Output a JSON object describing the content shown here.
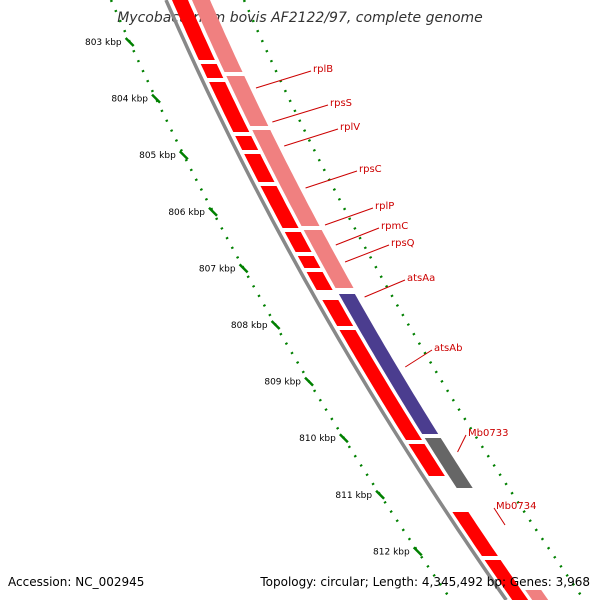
{
  "title": "Mycobacterium bovis AF2122/97, complete genome",
  "accession": "Accession: NC_002945",
  "topology": "Topology: circular; Length: 4,345,492 bp; Genes: 3,968",
  "colors": {
    "forward_cds": "#ff0000",
    "reverse_cds": "#f08080",
    "rrna_block": "#4b3d8f",
    "other_block": "#666666",
    "backbone": "#888888",
    "tick": "#008000",
    "label": "#cc0000"
  },
  "kbp_ticks": [
    {
      "label": "803 kbp",
      "kb": 803
    },
    {
      "label": "804 kbp",
      "kb": 804
    },
    {
      "label": "805 kbp",
      "kb": 805
    },
    {
      "label": "806 kbp",
      "kb": 806
    },
    {
      "label": "807 kbp",
      "kb": 807
    },
    {
      "label": "808 kbp",
      "kb": 808
    },
    {
      "label": "809 kbp",
      "kb": 809
    },
    {
      "label": "810 kbp",
      "kb": 810
    },
    {
      "label": "811 kbp",
      "kb": 811
    },
    {
      "label": "812 kbp",
      "kb": 812
    }
  ],
  "gene_labels": [
    "rplB",
    "rpsS",
    "rplV",
    "rpsC",
    "rplP",
    "rpmC",
    "rpsQ",
    "atsAa",
    "atsAb",
    "Mb0733",
    "Mb0734"
  ]
}
